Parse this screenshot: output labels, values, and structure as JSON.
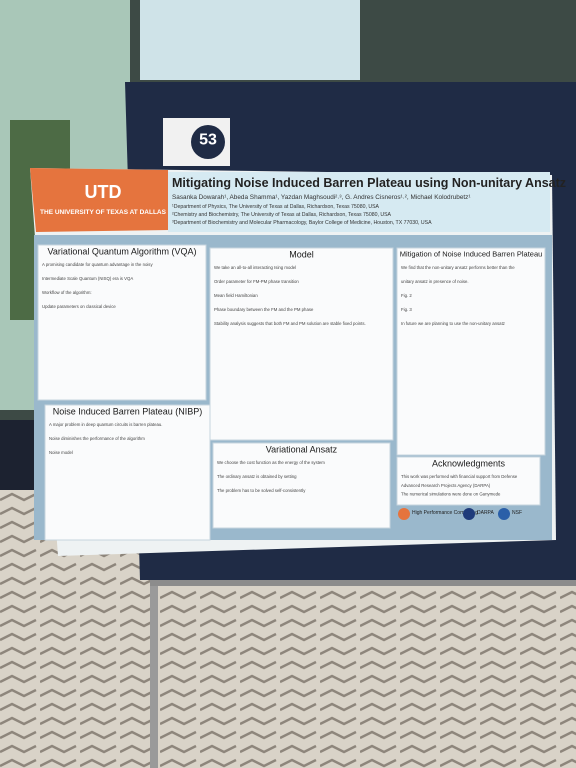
{
  "badge": "53",
  "header": {
    "university": "THE UNIVERSITY OF TEXAS AT DALLAS",
    "title": "Mitigating Noise Induced Barren Plateau using Non-unitary Ansatz",
    "authors": "Sasanka Dowarah¹, Abeda Shamma¹, Yazdan Maghsoudi²˒³, G. Andres Cisneros¹˒², Michael Kolodrubetz¹",
    "affiliations": [
      "¹Department of Physics, The University of Texas at Dallas, Richardson, Texas 75080, USA",
      "²Chemistry and Biochemistry, The University of Texas at Dallas, Richardson, Texas 75080, USA",
      "³Department of Biochemistry and Molecular Pharmacology, Baylor College of Medicine, Houston, TX 77030, USA"
    ]
  },
  "sections": [
    {
      "title": "Variational Quantum Algorithm (VQA)",
      "lines": [
        "A promising candidate for quantum advantage in the noisy",
        "Intermediate Scale Quantum (NISQ) era is VQA",
        "Workflow of the algorithm:",
        "Update parameters on classical device"
      ]
    },
    {
      "title": "Noise Induced Barren Plateau (NIBP)",
      "lines": [
        "A major problem in deep quantum circuits is barren plateau.",
        "Noise diminishes the performance of the algorithm",
        "Noise model"
      ]
    },
    {
      "title": "Model",
      "lines": [
        "We take an all-to-all interacting Ising model",
        "Order parameter for FM-PM phase transition",
        "Mean field Hamiltonian",
        "Phase boundary between the FM and the PM phase",
        "Stability analysis suggests that both FM and PM solution are stable fixed points."
      ]
    },
    {
      "title": "Variational Ansatz",
      "lines": [
        "We choose the cost function as the energy of the system",
        "The ordinary ansatz is obtained by setting",
        "The problem has to be solved self-consistently"
      ]
    },
    {
      "title": "Mitigation of Noise Induced Barren Plateau",
      "lines": [
        "We find that the non-unitary ansatz performs better than the",
        "unitary ansatz in presence of noise.",
        "Fig. 2",
        "Fig. 3",
        "In future we are planning to use the non-unitary ansatz"
      ]
    },
    {
      "title": "Acknowledgments",
      "lines": [
        "This work was performed with financial support from Defense",
        "Advanced Research Projects Agency (DARPA)",
        "The numerical simulations were done on Ganymede"
      ]
    }
  ],
  "logos": [
    "High Performance Computing",
    "DARPA",
    "NSF"
  ]
}
